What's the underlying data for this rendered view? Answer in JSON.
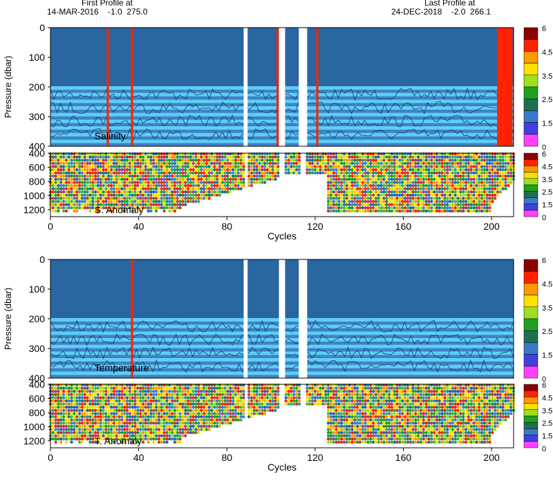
{
  "header": {
    "first_line1": "First Profile at",
    "first_line2": "14-MAR-2016    -1.0  275.0",
    "last_line1": "Last Profile at",
    "last_line2": "24-DEC-2018    -2.0  266.1"
  },
  "colors": {
    "deep_blue": "#2a66a0",
    "stripe_blue": "#3b82c8",
    "light_cyan": "#5ad0f5",
    "gap_white": "#ffffff",
    "red": "#ff2200",
    "outline": "#000000"
  },
  "chart_data": [
    {
      "type": "heatmap",
      "panel": "salinity",
      "label": "Salinity",
      "ylabel": "Pressure (dbar)",
      "xlabel": "",
      "xlim": [
        0,
        210
      ],
      "ylim": [
        0,
        400
      ],
      "x_ticks": [
        0,
        40,
        80,
        120,
        160,
        200
      ],
      "y_ticks": [
        0,
        100,
        200,
        300,
        400
      ],
      "colorbar_ticks": [
        "6",
        "4.5",
        "3.5",
        "2.5",
        "1.5",
        "0"
      ],
      "colorbar_colors": [
        "#8b0000",
        "#ff2200",
        "#ff9a00",
        "#ffe000",
        "#9ee020",
        "#20a020",
        "#207050",
        "#3a78c8",
        "#4040e0",
        "#ff40ff"
      ],
      "missing_cycles": [
        [
          88,
          89
        ],
        [
          104,
          106
        ],
        [
          113,
          116
        ]
      ],
      "flagged_cycles": [
        26,
        37,
        103,
        121,
        203,
        204,
        205,
        206,
        207,
        208,
        209
      ]
    },
    {
      "type": "scatter",
      "panel": "salinity-anomaly",
      "label": "S. Anomaly",
      "ylabel": "",
      "xlabel": "Cycles",
      "xlim": [
        0,
        210
      ],
      "ylim": [
        1300,
        400
      ],
      "x_ticks": [
        0,
        40,
        80,
        120,
        160,
        200
      ],
      "y_ticks": [
        400,
        600,
        800,
        1000,
        1200
      ],
      "colorbar_ticks": [
        "6",
        "4.5",
        "3.5",
        "2.5",
        "1.5",
        "0"
      ],
      "profile_depth_max": 1250
    },
    {
      "type": "heatmap",
      "panel": "temperature",
      "label": "Temperature",
      "ylabel": "Pressure (dbar)",
      "xlabel": "",
      "xlim": [
        0,
        210
      ],
      "ylim": [
        0,
        400
      ],
      "x_ticks": [
        0,
        40,
        80,
        120,
        160,
        200
      ],
      "y_ticks": [
        0,
        100,
        200,
        300,
        400
      ],
      "colorbar_ticks": [
        "6",
        "4.5",
        "3.5",
        "2.5",
        "1.5",
        "0"
      ],
      "missing_cycles": [
        [
          88,
          89
        ],
        [
          104,
          106
        ],
        [
          113,
          116
        ]
      ],
      "flagged_cycles": [
        37
      ]
    },
    {
      "type": "scatter",
      "panel": "temperature-anomaly",
      "label": "T. Anomaly",
      "ylabel": "",
      "xlabel": "Cycles",
      "xlim": [
        0,
        210
      ],
      "ylim": [
        1300,
        400
      ],
      "x_ticks": [
        0,
        40,
        80,
        120,
        160,
        200
      ],
      "y_ticks": [
        400,
        600,
        800,
        1000,
        1200
      ],
      "colorbar_ticks": [
        "6",
        "4.5",
        "3.5",
        "2.5",
        "1.5",
        "0"
      ],
      "profile_depth_max": 1250
    }
  ]
}
